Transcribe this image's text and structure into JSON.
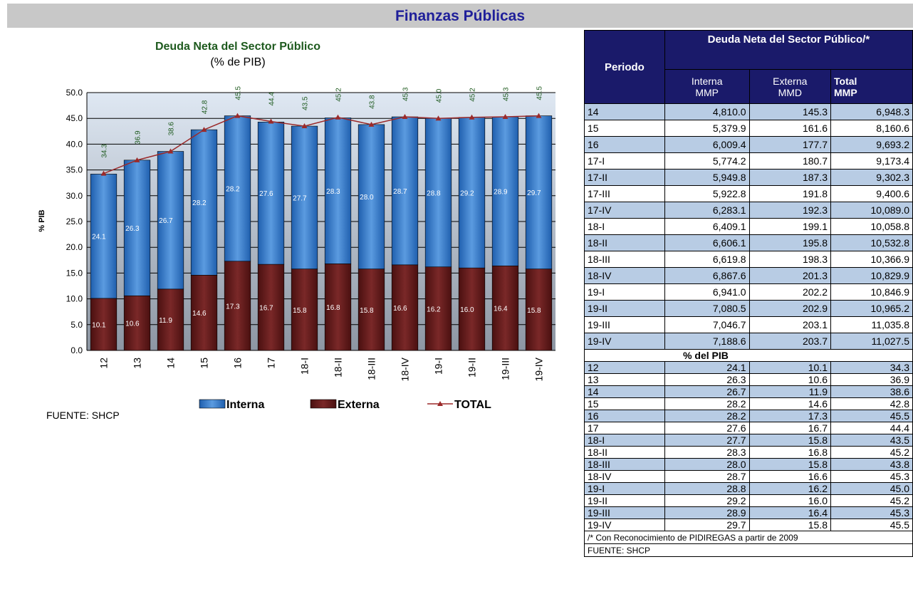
{
  "header": {
    "title": "Finanzas Públicas"
  },
  "chart_data": {
    "type": "stacked-bar-line",
    "title": "Deuda Neta del Sector Público",
    "subtitle": "(% de PIB)",
    "y_label": "% PIB",
    "categories": [
      "12",
      "13",
      "14",
      "15",
      "16",
      "17",
      "18-I",
      "18-II",
      "18-III",
      "18-IV",
      "19-I",
      "19-II",
      "19-III",
      "19-IV"
    ],
    "series": [
      {
        "name": "Externa",
        "color": "#6b1f1f",
        "values": [
          10.1,
          10.6,
          11.9,
          14.6,
          17.3,
          16.7,
          15.8,
          16.8,
          15.8,
          16.6,
          16.2,
          16.0,
          16.4,
          15.8
        ],
        "value_labels": [
          "10.1",
          "10.6",
          "11.9",
          "14.6",
          "17.3",
          "16.7",
          "15.8",
          "16.8",
          "15.8",
          "16.6",
          "16.2",
          "16.0",
          "16.4",
          "15.8"
        ]
      },
      {
        "name": "Interna",
        "color": "#3a7fcf",
        "values": [
          24.1,
          26.3,
          26.7,
          28.2,
          28.2,
          27.6,
          27.7,
          28.3,
          28.0,
          28.7,
          28.8,
          29.2,
          28.9,
          29.7
        ],
        "value_labels": [
          "24.1",
          "26.3",
          "26.7",
          "28.2",
          "28.2",
          "27.6",
          "27.7",
          "28.3",
          "28.0",
          "28.7",
          "28.8",
          "29.2",
          "28.9",
          "29.7"
        ]
      },
      {
        "name": "TOTAL",
        "type": "line",
        "color": "#9b2a2a",
        "values": [
          34.3,
          36.9,
          38.6,
          42.8,
          45.5,
          44.4,
          43.5,
          45.2,
          43.8,
          45.3,
          45.0,
          45.2,
          45.3,
          45.5
        ],
        "value_labels": [
          "34.3",
          "36.9",
          "38.6",
          "42.8",
          "45.5",
          "44.4",
          "43.5",
          "45.2",
          "43.8",
          "45.3",
          "45.0",
          "45.2",
          "45.3",
          "45.5"
        ]
      }
    ],
    "legend_order": [
      1,
      0,
      2
    ],
    "ylim": [
      0,
      50
    ],
    "yticks": [
      {
        "value": 0,
        "label": "0.0"
      },
      {
        "value": 5,
        "label": "5.0"
      },
      {
        "value": 10,
        "label": "10.0"
      },
      {
        "value": 15,
        "label": "15.0"
      },
      {
        "value": 20,
        "label": "20.0"
      },
      {
        "value": 25,
        "label": "25.0"
      },
      {
        "value": 30,
        "label": "30.0"
      },
      {
        "value": 35,
        "label": "35.0"
      },
      {
        "value": 40,
        "label": "40.0"
      },
      {
        "value": 45,
        "label": "45.0"
      },
      {
        "value": 50,
        "label": "50.0"
      }
    ],
    "grid": true,
    "source": "FUENTE: SHCP"
  },
  "table": {
    "period_header": "Periodo",
    "group_header": "Deuda Neta del Sector Público/*",
    "columns": [
      [
        "Interna",
        "MMP"
      ],
      [
        "Externa",
        "MMD"
      ],
      [
        "Total",
        "MMP"
      ]
    ],
    "rows": [
      [
        "14",
        "4,810.0",
        "145.3",
        "6,948.3"
      ],
      [
        "15",
        "5,379.9",
        "161.6",
        "8,160.6"
      ],
      [
        "16",
        "6,009.4",
        "177.7",
        "9,693.2"
      ],
      [
        "17-I",
        "5,774.2",
        "180.7",
        "9,173.4"
      ],
      [
        "17-II",
        "5,949.8",
        "187.3",
        "9,302.3"
      ],
      [
        "17-III",
        "5,922.8",
        "191.8",
        "9,400.6"
      ],
      [
        "17-IV",
        "6,283.1",
        "192.3",
        "10,089.0"
      ],
      [
        "18-I",
        "6,409.1",
        "199.1",
        "10,058.8"
      ],
      [
        "18-II",
        "6,606.1",
        "195.8",
        "10,532.8"
      ],
      [
        "18-III",
        "6,619.8",
        "198.3",
        "10,366.9"
      ],
      [
        "18-IV",
        "6,867.6",
        "201.3",
        "10,829.9"
      ],
      [
        "19-I",
        "6,941.0",
        "202.2",
        "10,846.9"
      ],
      [
        "19-II",
        "7,080.5",
        "202.9",
        "10,965.2"
      ],
      [
        "19-III",
        "7,046.7",
        "203.1",
        "11,035.8"
      ],
      [
        "19-IV",
        "7,188.6",
        "203.7",
        "11,027.5"
      ]
    ],
    "section": "% del PIB",
    "pib_rows": [
      [
        "12",
        "24.1",
        "10.1",
        "34.3"
      ],
      [
        "13",
        "26.3",
        "10.6",
        "36.9"
      ],
      [
        "14",
        "26.7",
        "11.9",
        "38.6"
      ],
      [
        "15",
        "28.2",
        "14.6",
        "42.8"
      ],
      [
        "16",
        "28.2",
        "17.3",
        "45.5"
      ],
      [
        "17",
        "27.6",
        "16.7",
        "44.4"
      ],
      [
        "18-I",
        "27.7",
        "15.8",
        "43.5"
      ],
      [
        "18-II",
        "28.3",
        "16.8",
        "45.2"
      ],
      [
        "18-III",
        "28.0",
        "15.8",
        "43.8"
      ],
      [
        "18-IV",
        "28.7",
        "16.6",
        "45.3"
      ],
      [
        "19-I",
        "28.8",
        "16.2",
        "45.0"
      ],
      [
        "19-II",
        "29.2",
        "16.0",
        "45.2"
      ],
      [
        "19-III",
        "28.9",
        "16.4",
        "45.3"
      ],
      [
        "19-IV",
        "29.7",
        "15.8",
        "45.5"
      ]
    ],
    "notes": [
      "/* Con Reconocimiento de PIDIREGAS a partir de 2009",
      "FUENTE: SHCP"
    ]
  }
}
